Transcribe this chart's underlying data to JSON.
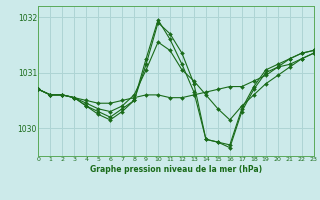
{
  "background_color": "#cceaea",
  "grid_color": "#aed4d4",
  "line_color": "#1a6b1a",
  "marker_color": "#1a6b1a",
  "title": "Graphe pression niveau de la mer (hPa)",
  "xlim": [
    0,
    23
  ],
  "ylim": [
    1029.5,
    1032.2
  ],
  "yticks": [
    1030,
    1031,
    1032
  ],
  "xticks": [
    0,
    1,
    2,
    3,
    4,
    5,
    6,
    7,
    8,
    9,
    10,
    11,
    12,
    13,
    14,
    15,
    16,
    17,
    18,
    19,
    20,
    21,
    22,
    23
  ],
  "series": [
    {
      "x": [
        0,
        1,
        2,
        3,
        4,
        5,
        6,
        7,
        8,
        9,
        10,
        11,
        12,
        13,
        14,
        15,
        16,
        17,
        18,
        19,
        20,
        21,
        22,
        23
      ],
      "y": [
        1030.7,
        1030.6,
        1030.6,
        1030.55,
        1030.5,
        1030.45,
        1030.45,
        1030.5,
        1030.55,
        1030.6,
        1030.6,
        1030.55,
        1030.55,
        1030.6,
        1030.65,
        1030.7,
        1030.75,
        1030.75,
        1030.85,
        1030.95,
        1031.1,
        1031.15,
        1031.25,
        1031.35
      ]
    },
    {
      "x": [
        0,
        1,
        2,
        3,
        4,
        5,
        6,
        7,
        8,
        9,
        10,
        11,
        12,
        13,
        14,
        15,
        16,
        17,
        18,
        19,
        20,
        21,
        22,
        23
      ],
      "y": [
        1030.7,
        1030.6,
        1030.6,
        1030.55,
        1030.45,
        1030.35,
        1030.3,
        1030.4,
        1030.6,
        1031.05,
        1031.55,
        1031.4,
        1031.05,
        1030.85,
        1030.6,
        1030.35,
        1030.15,
        1030.4,
        1030.6,
        1030.8,
        1030.95,
        1031.1,
        1031.25,
        1031.35
      ]
    },
    {
      "x": [
        0,
        1,
        2,
        3,
        4,
        5,
        6,
        7,
        8,
        9,
        10,
        11,
        12,
        13,
        14,
        15,
        16,
        17,
        18,
        19,
        20,
        21,
        22,
        23
      ],
      "y": [
        1030.7,
        1030.6,
        1030.6,
        1030.55,
        1030.4,
        1030.3,
        1030.2,
        1030.35,
        1030.5,
        1031.15,
        1031.9,
        1031.7,
        1031.35,
        1030.8,
        1029.8,
        1029.75,
        1029.7,
        1030.35,
        1030.75,
        1031.05,
        1031.15,
        1031.25,
        1031.35,
        1031.4
      ]
    },
    {
      "x": [
        0,
        1,
        2,
        3,
        4,
        5,
        6,
        7,
        8,
        9,
        10,
        11,
        12,
        13,
        14,
        15,
        16,
        17,
        18,
        19,
        20,
        21,
        22,
        23
      ],
      "y": [
        1030.7,
        1030.6,
        1030.6,
        1030.55,
        1030.4,
        1030.25,
        1030.15,
        1030.3,
        1030.5,
        1031.25,
        1031.95,
        1031.6,
        1031.15,
        1030.65,
        1029.8,
        1029.75,
        1029.65,
        1030.3,
        1030.7,
        1031.0,
        1031.1,
        1031.25,
        1031.35,
        1031.4
      ]
    }
  ]
}
